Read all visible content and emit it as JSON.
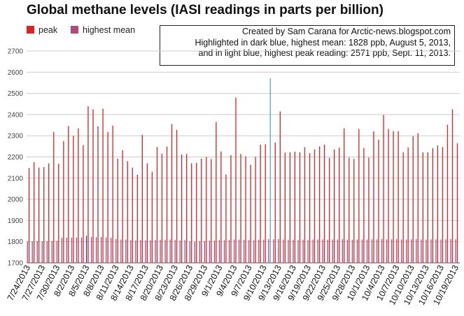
{
  "chart_data": {
    "type": "bar",
    "title": "Global methane levels (IASI readings in parts per billion)",
    "legend": [
      {
        "name": "peak",
        "color": "#dd2222"
      },
      {
        "name": "highest mean",
        "color": "#b04a7a"
      }
    ],
    "annotation": [
      "Created by Sam Carana for Arctic-news.blogspot.com",
      "Highlighted in dark blue, highest mean: 1828 ppb, August 5, 2013,",
      "and in light blue, highest peak reading: 2571 ppb, Sept. 11, 2013."
    ],
    "ylim": [
      1700,
      2700
    ],
    "yticks": [
      1700,
      1800,
      1900,
      2000,
      2100,
      2200,
      2300,
      2400,
      2500,
      2600,
      2700
    ],
    "grid": true,
    "x_tick_labels": [
      "7/24/2013",
      "7/27/2013",
      "7/30/2013",
      "8/2/2013",
      "8/5/2013",
      "8/8/2013",
      "8/11/2013",
      "8/14/2013",
      "8/17/2013",
      "8/20/2013",
      "8/23/2013",
      "8/26/2013",
      "8/29/2013",
      "9/1/2013",
      "9/4/2013",
      "9/7/2013",
      "9/10/2013",
      "9/13/2013",
      "9/16/2013",
      "9/19/2013",
      "9/22/2013",
      "9/25/2013",
      "9/28/2013",
      "10/1/2013",
      "10/4/2013",
      "10/7/2013",
      "10/10/2013",
      "10/13/2013",
      "10/16/2013",
      "10/19/2013"
    ],
    "start_date": "7/24/2013",
    "highlight_mean": {
      "index": 12,
      "value": 1828,
      "label": "August 5, 2013",
      "color": "#2a3f9a"
    },
    "highlight_peak": {
      "index": 49,
      "value": 2571,
      "label": "Sept. 11, 2013",
      "color": "#4aa8d8"
    },
    "series": [
      {
        "name": "peak",
        "color": "#dd2222",
        "values": [
          2148,
          2175,
          2150,
          2152,
          2170,
          2318,
          2168,
          2275,
          2346,
          2300,
          2335,
          2256,
          2440,
          2425,
          2345,
          2428,
          2318,
          2348,
          2192,
          2232,
          2180,
          2150,
          2116,
          2304,
          2170,
          2130,
          2247,
          2216,
          2249,
          2355,
          2328,
          2212,
          2214,
          2170,
          2172,
          2192,
          2200,
          2190,
          2365,
          2226,
          2117,
          2208,
          2480,
          2214,
          2203,
          2163,
          2200,
          2258,
          2260,
          2571,
          2268,
          2415,
          2220,
          2222,
          2225,
          2222,
          2246,
          2218,
          2236,
          2250,
          2258,
          2196,
          2235,
          2244,
          2335,
          2197,
          2191,
          2332,
          2242,
          2197,
          2321,
          2282,
          2398,
          2332,
          2322,
          2322,
          2222,
          2245,
          2298,
          2312,
          2222,
          2222,
          2242,
          2255,
          2247,
          2352,
          2425,
          2265
        ]
      },
      {
        "name": "highest mean",
        "color": "#b04a7a",
        "values": [
          1802,
          1802,
          1803,
          1802,
          1803,
          1804,
          1804,
          1818,
          1819,
          1819,
          1820,
          1820,
          1828,
          1822,
          1821,
          1822,
          1820,
          1818,
          1812,
          1810,
          1810,
          1808,
          1806,
          1808,
          1806,
          1807,
          1808,
          1809,
          1808,
          1810,
          1808,
          1806,
          1808,
          1802,
          1800,
          1803,
          1804,
          1805,
          1806,
          1808,
          1807,
          1808,
          1810,
          1810,
          1809,
          1808,
          1807,
          1809,
          1810,
          1812,
          1811,
          1812,
          1810,
          1808,
          1809,
          1808,
          1809,
          1808,
          1810,
          1810,
          1811,
          1809,
          1810,
          1810,
          1812,
          1810,
          1809,
          1811,
          1810,
          1810,
          1811,
          1811,
          1812,
          1811,
          1811,
          1812,
          1810,
          1810,
          1811,
          1812,
          1810,
          1810,
          1811,
          1811,
          1810,
          1811,
          1812,
          1811
        ]
      }
    ]
  }
}
